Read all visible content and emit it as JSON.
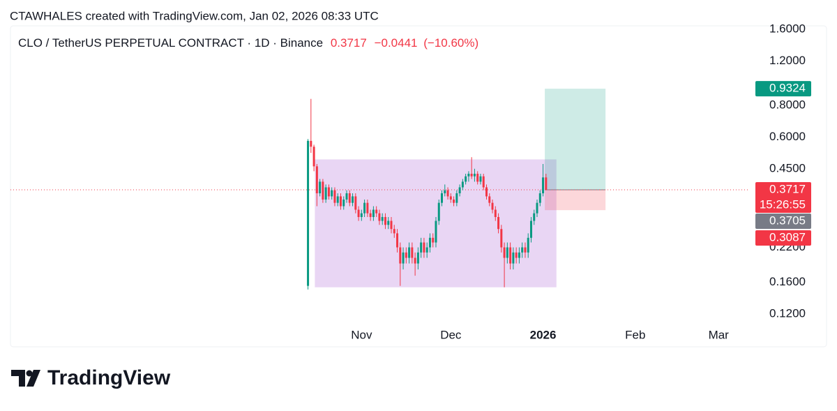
{
  "header": {
    "credit": "CTAWHALES created with TradingView.com, Jan 02, 2026 08:33 UTC"
  },
  "chart_data": {
    "type": "candlestick",
    "symbol": "CLO / TetherUS PERPETUAL CONTRACT · 1D · Binance",
    "last_price": 0.3717,
    "change": {
      "value": -0.0441,
      "label": "−0.0441"
    },
    "change_pct": {
      "value": -10.6,
      "label": "(−10.60%)"
    },
    "countdown": "15:26:55",
    "mark_price": 0.3705,
    "log_scale": true,
    "up_color": "#089981",
    "down_color": "#f23645",
    "xlim": [
      -100,
      148.5
    ],
    "ylim": [
      0.107,
      1.674
    ],
    "xticks": [
      {
        "value": 18,
        "label": "Nov"
      },
      {
        "value": 48,
        "label": "Dec"
      },
      {
        "value": 79,
        "label": "2026",
        "bold": true
      },
      {
        "value": 110,
        "label": "Feb"
      },
      {
        "value": 138,
        "label": "Mar"
      }
    ],
    "yticks": [
      {
        "value": 0.12,
        "label": "0.1200"
      },
      {
        "value": 0.16,
        "label": "0.1600"
      },
      {
        "value": 0.22,
        "label": "0.2200"
      },
      {
        "value": 0.45,
        "label": "0.4500"
      },
      {
        "value": 0.6,
        "label": "0.6000"
      },
      {
        "value": 0.8,
        "label": "0.8000"
      },
      {
        "value": 1.2,
        "label": "1.2000"
      },
      {
        "value": 1.6,
        "label": "1.6000"
      }
    ],
    "zone": {
      "x": [
        2.3,
        83.5
      ],
      "high": 0.49,
      "low": 0.153,
      "color": "#e1c8f0"
    },
    "position": {
      "x": [
        79.6,
        100
      ],
      "entry": 0.3717,
      "target": 0.9324,
      "stop": 0.3087
    },
    "candles": [
      [
        0.155,
        0.59,
        0.15,
        0.58
      ],
      [
        0.58,
        0.85,
        0.52,
        0.55
      ],
      [
        0.55,
        0.56,
        0.44,
        0.46
      ],
      [
        0.46,
        0.47,
        0.32,
        0.36
      ],
      [
        0.36,
        0.41,
        0.35,
        0.4
      ],
      [
        0.4,
        0.41,
        0.33,
        0.34
      ],
      [
        0.34,
        0.39,
        0.33,
        0.38
      ],
      [
        0.38,
        0.39,
        0.34,
        0.35
      ],
      [
        0.35,
        0.38,
        0.34,
        0.37
      ],
      [
        0.37,
        0.38,
        0.32,
        0.33
      ],
      [
        0.33,
        0.36,
        0.32,
        0.35
      ],
      [
        0.35,
        0.36,
        0.31,
        0.32
      ],
      [
        0.32,
        0.35,
        0.31,
        0.34
      ],
      [
        0.34,
        0.37,
        0.33,
        0.36
      ],
      [
        0.36,
        0.37,
        0.32,
        0.33
      ],
      [
        0.33,
        0.36,
        0.32,
        0.35
      ],
      [
        0.35,
        0.36,
        0.3,
        0.31
      ],
      [
        0.31,
        0.32,
        0.28,
        0.29
      ],
      [
        0.29,
        0.31,
        0.28,
        0.3
      ],
      [
        0.3,
        0.34,
        0.29,
        0.33
      ],
      [
        0.33,
        0.34,
        0.29,
        0.3
      ],
      [
        0.3,
        0.31,
        0.28,
        0.29
      ],
      [
        0.29,
        0.32,
        0.28,
        0.31
      ],
      [
        0.31,
        0.32,
        0.29,
        0.3
      ],
      [
        0.3,
        0.31,
        0.27,
        0.28
      ],
      [
        0.28,
        0.3,
        0.27,
        0.29
      ],
      [
        0.29,
        0.3,
        0.26,
        0.27
      ],
      [
        0.27,
        0.29,
        0.26,
        0.28
      ],
      [
        0.28,
        0.29,
        0.25,
        0.26
      ],
      [
        0.26,
        0.27,
        0.24,
        0.25
      ],
      [
        0.25,
        0.26,
        0.21,
        0.22
      ],
      [
        0.22,
        0.23,
        0.155,
        0.19
      ],
      [
        0.19,
        0.22,
        0.18,
        0.21
      ],
      [
        0.21,
        0.22,
        0.19,
        0.2
      ],
      [
        0.2,
        0.23,
        0.19,
        0.22
      ],
      [
        0.22,
        0.23,
        0.19,
        0.2
      ],
      [
        0.2,
        0.21,
        0.17,
        0.19
      ],
      [
        0.19,
        0.22,
        0.18,
        0.21
      ],
      [
        0.21,
        0.24,
        0.2,
        0.23
      ],
      [
        0.23,
        0.24,
        0.2,
        0.21
      ],
      [
        0.21,
        0.23,
        0.2,
        0.22
      ],
      [
        0.22,
        0.25,
        0.21,
        0.24
      ],
      [
        0.24,
        0.25,
        0.22,
        0.23
      ],
      [
        0.23,
        0.29,
        0.22,
        0.28
      ],
      [
        0.28,
        0.34,
        0.27,
        0.33
      ],
      [
        0.33,
        0.37,
        0.32,
        0.36
      ],
      [
        0.36,
        0.39,
        0.35,
        0.37
      ],
      [
        0.37,
        0.38,
        0.34,
        0.35
      ],
      [
        0.35,
        0.36,
        0.33,
        0.34
      ],
      [
        0.34,
        0.35,
        0.32,
        0.33
      ],
      [
        0.33,
        0.37,
        0.32,
        0.36
      ],
      [
        0.36,
        0.39,
        0.35,
        0.38
      ],
      [
        0.38,
        0.41,
        0.37,
        0.4
      ],
      [
        0.4,
        0.43,
        0.39,
        0.42
      ],
      [
        0.42,
        0.44,
        0.4,
        0.43
      ],
      [
        0.43,
        0.5,
        0.41,
        0.42
      ],
      [
        0.42,
        0.45,
        0.4,
        0.43
      ],
      [
        0.43,
        0.44,
        0.39,
        0.4
      ],
      [
        0.4,
        0.43,
        0.39,
        0.42
      ],
      [
        0.42,
        0.43,
        0.37,
        0.38
      ],
      [
        0.38,
        0.39,
        0.34,
        0.35
      ],
      [
        0.35,
        0.36,
        0.32,
        0.33
      ],
      [
        0.33,
        0.34,
        0.3,
        0.31
      ],
      [
        0.31,
        0.32,
        0.28,
        0.29
      ],
      [
        0.29,
        0.3,
        0.25,
        0.26
      ],
      [
        0.26,
        0.27,
        0.21,
        0.22
      ],
      [
        0.22,
        0.23,
        0.153,
        0.2
      ],
      [
        0.2,
        0.23,
        0.19,
        0.22
      ],
      [
        0.22,
        0.23,
        0.18,
        0.19
      ],
      [
        0.19,
        0.22,
        0.18,
        0.21
      ],
      [
        0.21,
        0.22,
        0.19,
        0.2
      ],
      [
        0.2,
        0.22,
        0.19,
        0.21
      ],
      [
        0.21,
        0.23,
        0.2,
        0.22
      ],
      [
        0.22,
        0.23,
        0.2,
        0.21
      ],
      [
        0.21,
        0.25,
        0.2,
        0.24
      ],
      [
        0.24,
        0.29,
        0.23,
        0.28
      ],
      [
        0.28,
        0.31,
        0.27,
        0.3
      ],
      [
        0.3,
        0.34,
        0.29,
        0.33
      ],
      [
        0.33,
        0.37,
        0.32,
        0.36
      ],
      [
        0.36,
        0.47,
        0.35,
        0.4158
      ],
      [
        0.4158,
        0.43,
        0.37,
        0.3717
      ]
    ]
  },
  "footer": {
    "brand": "TradingView"
  }
}
